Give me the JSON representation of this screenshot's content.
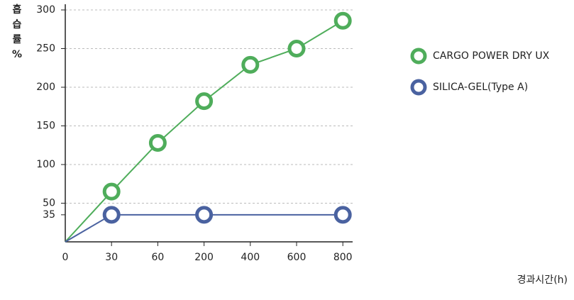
{
  "chart_data": {
    "type": "line",
    "y_label": "흡습률%",
    "x_label": "경과시간(h)",
    "categories": [
      "0",
      "30",
      "60",
      "200",
      "400",
      "600",
      "800"
    ],
    "series": [
      {
        "name": "CARGO POWER DRY UX",
        "color": "#4fad5b",
        "values": [
          0,
          65,
          128,
          182,
          229,
          250,
          286
        ]
      },
      {
        "name": "SILICA-GEL(Type A)",
        "color": "#4a62a0",
        "values": [
          0,
          35,
          null,
          35,
          null,
          null,
          35
        ]
      }
    ],
    "ylim": [
      0,
      300
    ],
    "yticks": [
      35,
      50,
      100,
      150,
      200,
      250,
      300
    ],
    "grid": true,
    "legend": "right"
  }
}
